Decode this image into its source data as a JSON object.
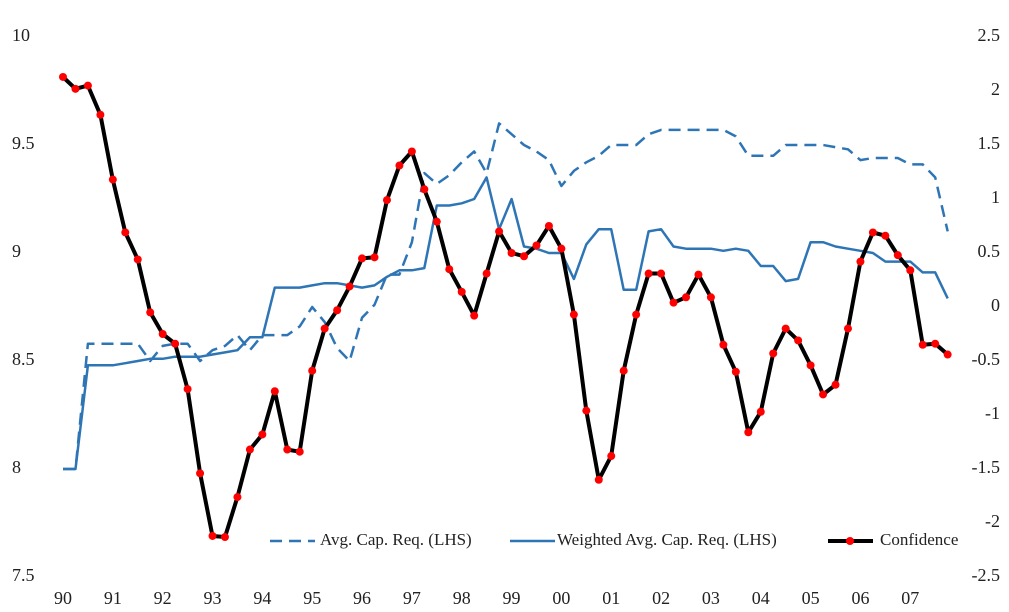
{
  "chart_data": {
    "type": "line",
    "categories": [
      "90",
      null,
      null,
      null,
      "91",
      null,
      null,
      null,
      "92",
      null,
      null,
      null,
      "93",
      null,
      null,
      null,
      "94",
      null,
      null,
      null,
      "95",
      null,
      null,
      null,
      "96",
      null,
      null,
      null,
      "97",
      null,
      null,
      null,
      "98",
      null,
      null,
      null,
      "99",
      null,
      null,
      null,
      "00",
      null,
      null,
      null,
      "01",
      null,
      null,
      null,
      "02",
      null,
      null,
      null,
      "03",
      null,
      null,
      null,
      "04",
      null,
      null,
      null,
      "05",
      null,
      null,
      null,
      "06",
      null,
      null,
      null,
      "07",
      null,
      null,
      null
    ],
    "ylim": [
      7.5,
      10
    ],
    "yticks": [
      7.5,
      8,
      8.5,
      9,
      9.5,
      10
    ],
    "y2lim": [
      -2.5,
      2.5
    ],
    "y2ticks": [
      -2.5,
      -2,
      -1.5,
      -1,
      -0.5,
      0,
      0.5,
      1,
      1.5,
      2,
      2.5
    ],
    "legend": "bottom-right",
    "series": [
      {
        "name": "Avg. Cap. Req. (LHS)",
        "color": "#2e75b6",
        "dash": true,
        "marker": false,
        "values": [
          8.0,
          8.0,
          8.58,
          8.58,
          8.58,
          8.58,
          8.58,
          8.5,
          8.57,
          8.58,
          8.58,
          8.5,
          8.55,
          8.57,
          8.62,
          8.55,
          8.62,
          8.62,
          8.62,
          8.66,
          8.75,
          8.68,
          8.56,
          8.5,
          8.7,
          8.76,
          8.9,
          8.9,
          9.05,
          9.37,
          9.32,
          9.36,
          9.42,
          9.47,
          9.37,
          9.6,
          9.55,
          9.5,
          9.47,
          9.43,
          9.31,
          9.38,
          9.42,
          9.45,
          9.5,
          9.5,
          9.5,
          9.55,
          9.57,
          9.57,
          9.57,
          9.57,
          9.57,
          9.57,
          9.54,
          9.45,
          9.45,
          9.45,
          9.5,
          9.5,
          9.5,
          9.5,
          9.49,
          9.48,
          9.43,
          9.44,
          9.44,
          9.44,
          9.41,
          9.41,
          9.35,
          9.1
        ]
      },
      {
        "name": "Weighted Avg. Cap. Req. (LHS)",
        "color": "#2e75b6",
        "dash": false,
        "marker": false,
        "values": [
          8.0,
          8.0,
          8.48,
          8.48,
          8.48,
          8.49,
          8.5,
          8.51,
          8.51,
          8.52,
          8.52,
          8.52,
          8.53,
          8.54,
          8.55,
          8.61,
          8.61,
          8.84,
          8.84,
          8.84,
          8.85,
          8.86,
          8.86,
          8.85,
          8.84,
          8.85,
          8.89,
          8.92,
          8.92,
          8.93,
          9.22,
          9.22,
          9.23,
          9.25,
          9.35,
          9.11,
          9.25,
          9.03,
          9.02,
          9.0,
          9.0,
          8.88,
          9.04,
          9.11,
          9.11,
          8.83,
          8.83,
          9.1,
          9.11,
          9.03,
          9.02,
          9.02,
          9.02,
          9.01,
          9.02,
          9.01,
          8.94,
          8.94,
          8.87,
          8.88,
          9.05,
          9.05,
          9.03,
          9.02,
          9.01,
          9.0,
          8.96,
          8.96,
          8.96,
          8.91,
          8.91,
          8.79
        ]
      },
      {
        "name": "Confidence",
        "color": "#000000",
        "marker_color": "#ff0000",
        "dash": false,
        "marker": true,
        "axis": "y2",
        "values": [
          2.13,
          2.02,
          2.05,
          1.78,
          1.18,
          0.69,
          0.44,
          -0.05,
          -0.25,
          -0.34,
          -0.76,
          -1.54,
          -2.12,
          -2.13,
          -1.76,
          -1.32,
          -1.18,
          -0.78,
          -1.32,
          -1.34,
          -0.59,
          -0.2,
          -0.03,
          0.19,
          0.45,
          0.46,
          0.99,
          1.31,
          1.44,
          1.09,
          0.79,
          0.35,
          0.14,
          -0.08,
          0.31,
          0.7,
          0.5,
          0.47,
          0.57,
          0.75,
          0.54,
          -0.07,
          -0.96,
          -1.6,
          -1.38,
          -0.59,
          -0.07,
          0.31,
          0.31,
          0.04,
          0.09,
          0.3,
          0.09,
          -0.35,
          -0.6,
          -1.16,
          -0.97,
          -0.43,
          -0.2,
          -0.31,
          -0.54,
          -0.81,
          -0.72,
          -0.2,
          0.42,
          0.69,
          0.66,
          0.48,
          0.34,
          -0.35,
          -0.34,
          -0.44
        ]
      }
    ]
  }
}
